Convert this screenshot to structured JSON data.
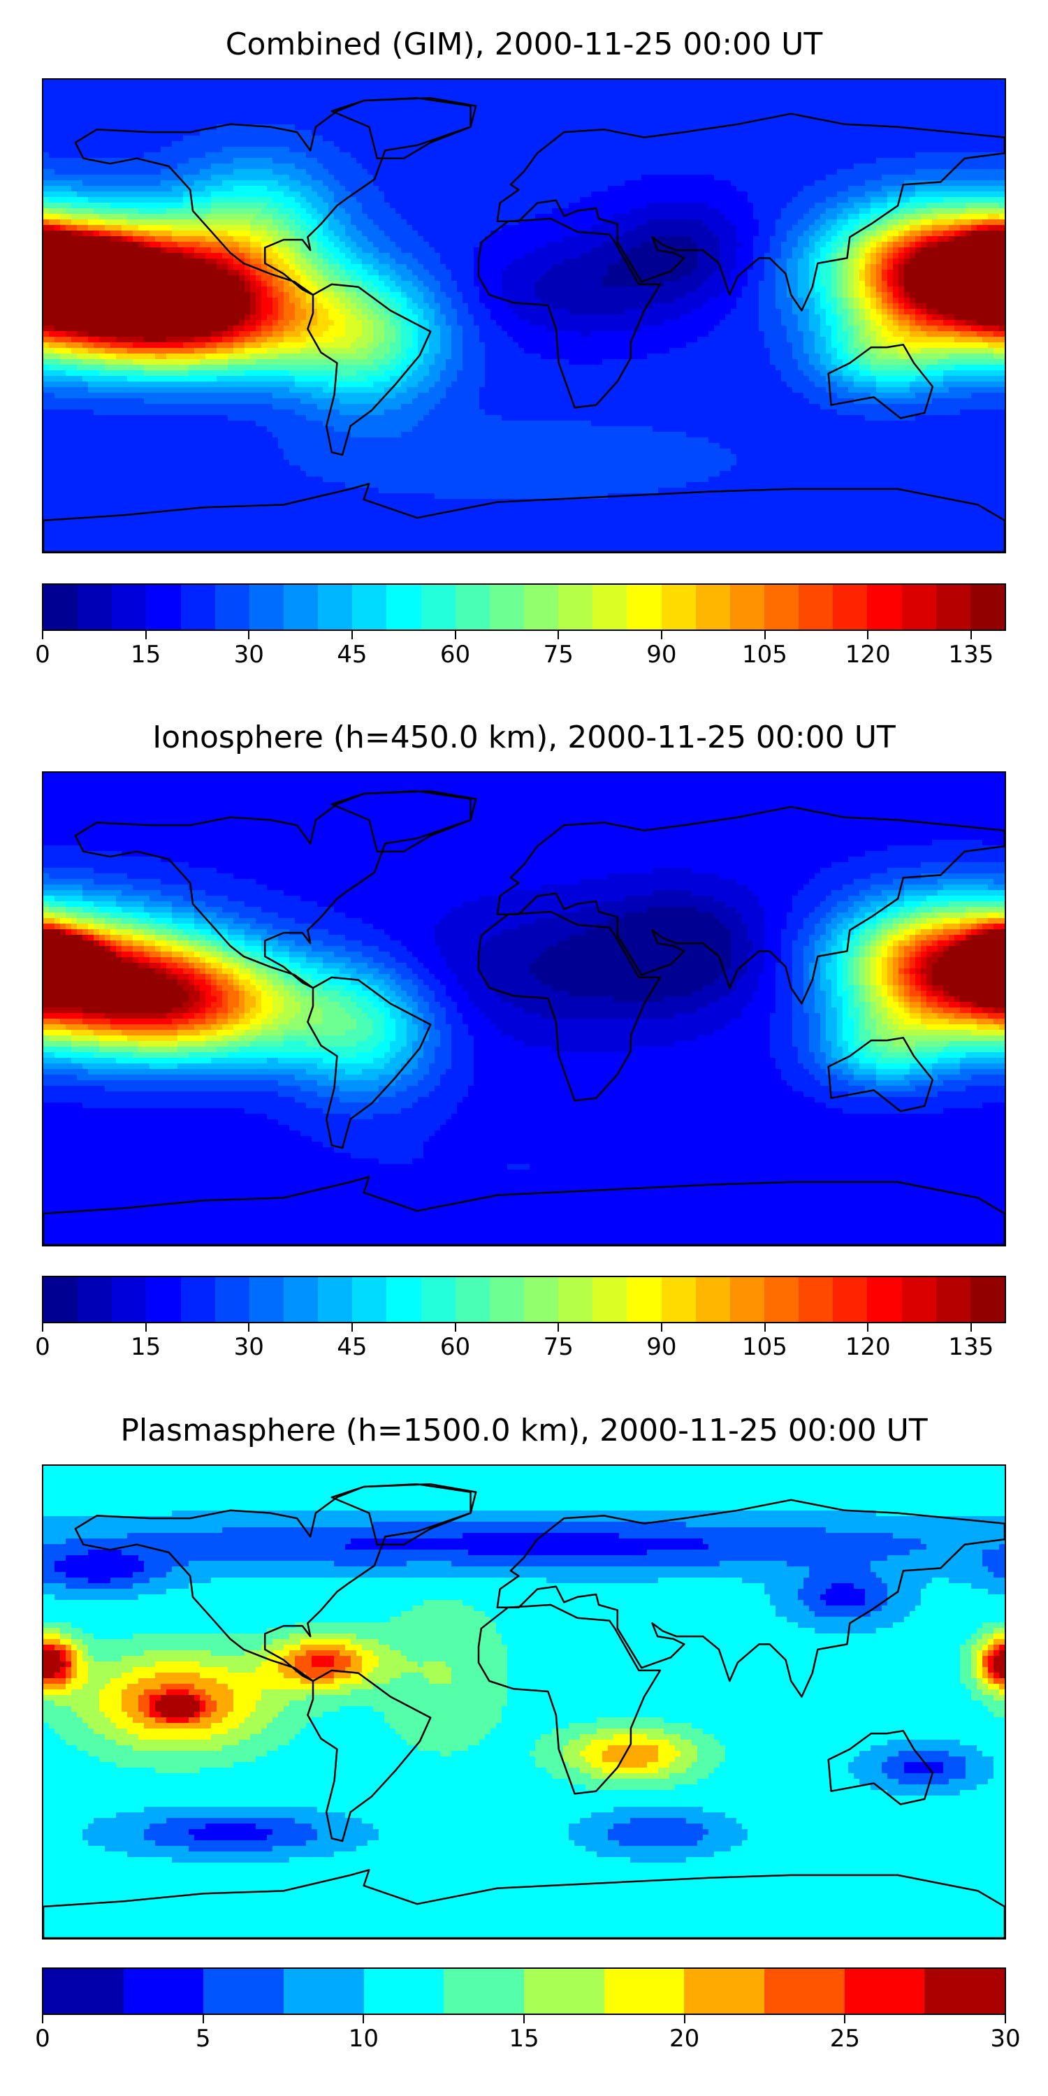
{
  "panels": [
    {
      "id": "combined",
      "title": "Combined (GIM), 2000-11-25 00:00 UT",
      "colorbar": {
        "min": 0,
        "max": 140,
        "levels": 28,
        "ticks": [
          "0",
          "15",
          "30",
          "45",
          "60",
          "75",
          "90",
          "105",
          "120",
          "135"
        ],
        "tick_values": [
          0,
          15,
          30,
          45,
          60,
          75,
          90,
          105,
          120,
          135
        ]
      },
      "field_base": 22,
      "blobs": [
        {
          "lon": -175,
          "lat": 18,
          "rx": 60,
          "ry": 22,
          "value": 110
        },
        {
          "lon": -168,
          "lat": 20,
          "rx": 18,
          "ry": 8,
          "value": 140
        },
        {
          "lon": -140,
          "lat": 10,
          "rx": 55,
          "ry": 20,
          "value": 100
        },
        {
          "lon": -130,
          "lat": -5,
          "rx": 55,
          "ry": 18,
          "value": 95
        },
        {
          "lon": -100,
          "lat": 35,
          "rx": 30,
          "ry": 25,
          "value": 55
        },
        {
          "lon": -60,
          "lat": -10,
          "rx": 30,
          "ry": 25,
          "value": 60
        },
        {
          "lon": 155,
          "lat": 15,
          "rx": 35,
          "ry": 25,
          "value": 80
        },
        {
          "lon": 178,
          "lat": 18,
          "rx": 10,
          "ry": 12,
          "value": 120
        },
        {
          "lon": 135,
          "lat": -15,
          "rx": 25,
          "ry": 15,
          "value": 55
        },
        {
          "lon": 20,
          "lat": 10,
          "rx": 40,
          "ry": 20,
          "value": 8
        },
        {
          "lon": 60,
          "lat": 25,
          "rx": 30,
          "ry": 20,
          "value": 5
        },
        {
          "lon": 0,
          "lat": -55,
          "rx": 80,
          "ry": 15,
          "value": 30
        }
      ]
    },
    {
      "id": "ionosphere",
      "title": "Ionosphere  (h=450.0 km), 2000-11-25 00:00 UT",
      "colorbar": {
        "min": 0,
        "max": 140,
        "levels": 28,
        "ticks": [
          "0",
          "15",
          "30",
          "45",
          "60",
          "75",
          "90",
          "105",
          "120",
          "135"
        ],
        "tick_values": [
          0,
          15,
          30,
          45,
          60,
          75,
          90,
          105,
          120,
          135
        ]
      },
      "field_base": 18,
      "blobs": [
        {
          "lon": -175,
          "lat": 18,
          "rx": 55,
          "ry": 22,
          "value": 90
        },
        {
          "lon": -172,
          "lat": 20,
          "rx": 12,
          "ry": 7,
          "value": 112
        },
        {
          "lon": -140,
          "lat": 8,
          "rx": 55,
          "ry": 18,
          "value": 80
        },
        {
          "lon": -130,
          "lat": -5,
          "rx": 55,
          "ry": 18,
          "value": 70
        },
        {
          "lon": -60,
          "lat": -10,
          "rx": 28,
          "ry": 25,
          "value": 50
        },
        {
          "lon": 155,
          "lat": 15,
          "rx": 35,
          "ry": 25,
          "value": 72
        },
        {
          "lon": 178,
          "lat": 18,
          "rx": 10,
          "ry": 12,
          "value": 92
        },
        {
          "lon": 135,
          "lat": -15,
          "rx": 25,
          "ry": 15,
          "value": 50
        },
        {
          "lon": 20,
          "lat": 15,
          "rx": 60,
          "ry": 25,
          "value": 4
        },
        {
          "lon": 60,
          "lat": 25,
          "rx": 30,
          "ry": 20,
          "value": 3
        },
        {
          "lon": 0,
          "lat": -60,
          "rx": 80,
          "ry": 12,
          "value": 20
        }
      ]
    },
    {
      "id": "plasmasphere",
      "title": "Plasmasphere (h=1500.0 km), 2000-11-25 00:00 UT",
      "colorbar": {
        "min": 0,
        "max": 30,
        "levels": 12,
        "ticks": [
          "0",
          "5",
          "10",
          "15",
          "20",
          "25",
          "30"
        ],
        "tick_values": [
          0,
          5,
          10,
          15,
          20,
          25,
          30
        ]
      },
      "field_base": 11,
      "blobs": [
        {
          "lon": -130,
          "lat": 0,
          "rx": 35,
          "ry": 18,
          "value": 24
        },
        {
          "lon": -130,
          "lat": -2,
          "rx": 8,
          "ry": 4,
          "value": 28
        },
        {
          "lon": -75,
          "lat": 15,
          "rx": 20,
          "ry": 10,
          "value": 25
        },
        {
          "lon": -175,
          "lat": 15,
          "rx": 10,
          "ry": 10,
          "value": 22
        },
        {
          "lon": 178,
          "lat": 15,
          "rx": 10,
          "ry": 10,
          "value": 23
        },
        {
          "lon": 40,
          "lat": -20,
          "rx": 25,
          "ry": 10,
          "value": 22
        },
        {
          "lon": 0,
          "lat": 60,
          "rx": 180,
          "ry": 10,
          "value": 4
        },
        {
          "lon": -110,
          "lat": -50,
          "rx": 40,
          "ry": 8,
          "value": 4
        },
        {
          "lon": 50,
          "lat": -50,
          "rx": 25,
          "ry": 8,
          "value": 5
        },
        {
          "lon": 120,
          "lat": 40,
          "rx": 20,
          "ry": 10,
          "value": 4
        },
        {
          "lon": 150,
          "lat": -25,
          "rx": 20,
          "ry": 8,
          "value": 4
        },
        {
          "lon": -160,
          "lat": 50,
          "rx": 25,
          "ry": 8,
          "value": 4
        },
        {
          "lon": -30,
          "lat": 10,
          "rx": 25,
          "ry": 30,
          "value": 15
        }
      ]
    }
  ]
}
